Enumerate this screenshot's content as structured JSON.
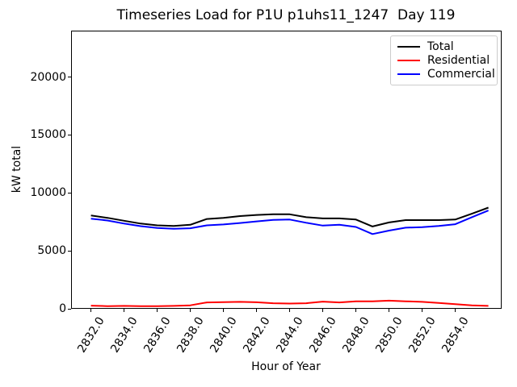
{
  "chart_data": {
    "type": "line",
    "title": "Timeseries Load for P1U p1uhs11_1247  Day 119",
    "xlabel": "Hour of Year",
    "ylabel": "kW total",
    "grid": false,
    "legend_position": "upper right",
    "xlim": [
      2830.8,
      2856.8
    ],
    "ylim": [
      0,
      24000
    ],
    "x_ticks": [
      2832,
      2834,
      2836,
      2838,
      2840,
      2842,
      2844,
      2846,
      2848,
      2850,
      2852,
      2854
    ],
    "x_tick_labels": [
      "2832.0",
      "2834.0",
      "2836.0",
      "2838.0",
      "2840.0",
      "2842.0",
      "2844.0",
      "2846.0",
      "2848.0",
      "2850.0",
      "2852.0",
      "2854.0"
    ],
    "y_ticks": [
      0,
      5000,
      10000,
      15000,
      20000
    ],
    "y_tick_labels": [
      "0",
      "5000",
      "10000",
      "15000",
      "20000"
    ],
    "x": [
      2832,
      2833,
      2834,
      2835,
      2836,
      2837,
      2838,
      2839,
      2840,
      2841,
      2842,
      2843,
      2844,
      2845,
      2846,
      2847,
      2848,
      2849,
      2850,
      2851,
      2852,
      2853,
      2854,
      2855,
      2856
    ],
    "series": [
      {
        "name": "Total",
        "color": "#000000",
        "values": [
          8050,
          7850,
          7600,
          7350,
          7200,
          7150,
          7250,
          7750,
          7850,
          8000,
          8100,
          8150,
          8150,
          7900,
          7800,
          7800,
          7700,
          7100,
          7450,
          7650,
          7650,
          7650,
          7700,
          8200,
          8730
        ]
      },
      {
        "name": "Residential",
        "color": "#ff0000",
        "values": [
          270,
          230,
          250,
          220,
          230,
          250,
          300,
          550,
          570,
          600,
          560,
          480,
          450,
          480,
          620,
          550,
          640,
          650,
          700,
          650,
          600,
          500,
          400,
          300,
          250
        ]
      },
      {
        "name": "Commercial",
        "color": "#0000ff",
        "values": [
          7780,
          7620,
          7350,
          7130,
          6970,
          6900,
          6950,
          7200,
          7280,
          7400,
          7540,
          7670,
          7700,
          7420,
          7180,
          7250,
          7060,
          6450,
          6750,
          7000,
          7050,
          7150,
          7300,
          7900,
          8480
        ]
      }
    ]
  }
}
